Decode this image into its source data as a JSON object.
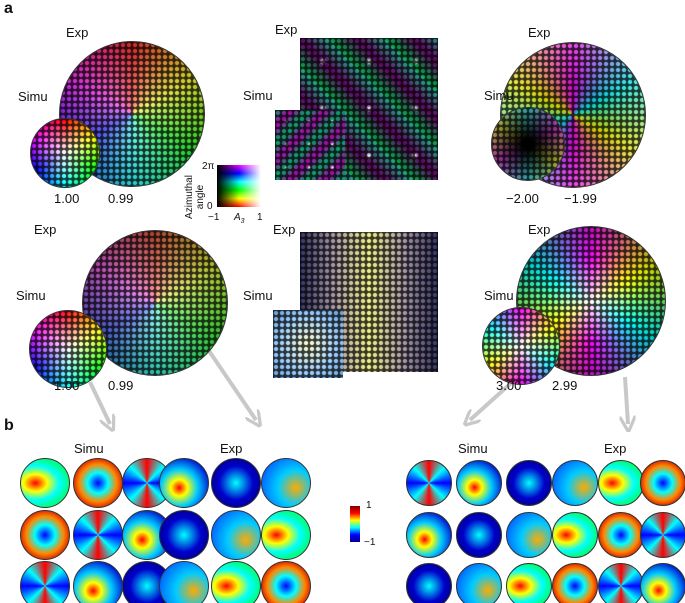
{
  "panel_labels": [
    "a",
    "b"
  ],
  "panel_a": {
    "top_row": [
      {
        "exp_label": "Exp",
        "simu_label": "Simu",
        "simu_value": "1.00",
        "exp_value": "0.99"
      },
      {
        "exp_label": "Exp",
        "simu_label": "Simu"
      },
      {
        "exp_label": "Exp",
        "simu_label": "Simu",
        "simu_value": "−2.00",
        "exp_value": "−1.99"
      }
    ],
    "bottom_row": [
      {
        "exp_label": "Exp",
        "simu_label": "Simu",
        "simu_value": "1.00",
        "exp_value": "0.99"
      },
      {
        "exp_label": "Exp",
        "simu_label": "Simu"
      },
      {
        "exp_label": "Exp",
        "simu_label": "Simu",
        "simu_value": "3.00",
        "exp_value": "2.99"
      }
    ],
    "legend": {
      "y_title": "Azimuthal angle",
      "y_top": "2π",
      "y_bottom": "0",
      "x_left": "−1",
      "x_title": "A",
      "x_title_sub": "3",
      "x_right": "1"
    }
  },
  "panel_b": {
    "groups": [
      {
        "simu_label": "Simu",
        "exp_label": "Exp"
      },
      {
        "simu_label": "Simu",
        "exp_label": "Exp"
      }
    ],
    "colorbar": {
      "top": "1",
      "bottom": "−1"
    }
  }
}
